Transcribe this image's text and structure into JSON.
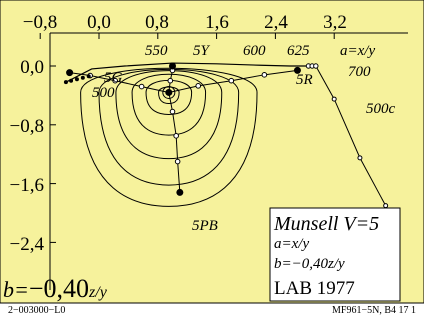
{
  "chart_data": {
    "type": "line",
    "title": "Munsell V=5",
    "subtitle_lines": [
      "a=x/y",
      "b=−0,40z/y"
    ],
    "system": "LAB 1977",
    "bottom_formula": {
      "prefix": "b=",
      "value": "−0,40",
      "suffix": "z/y"
    },
    "xlim": [
      -0.8,
      3.2
    ],
    "ylim": [
      -2.4,
      0.0
    ],
    "x_ticks": [
      "−0,8",
      "0,0",
      "0,8",
      "1,6",
      "2,4",
      "3,2"
    ],
    "y_ticks": [
      "0,0",
      "−0,8",
      "−1,6",
      "−2,4"
    ],
    "wavelength_labels": [
      "550",
      "5Y",
      "600",
      "625",
      "700",
      "500",
      "500c"
    ],
    "hue_labels": [
      "5G",
      "5R",
      "5PB"
    ],
    "axis_formula_label": "a=x/y",
    "white_point": [
      0.95,
      -0.36
    ],
    "spectral_locus": [
      [
        -0.45,
        -0.22
      ],
      [
        -0.1,
        -0.04
      ],
      [
        0.35,
        0.0
      ],
      [
        1.0,
        0.04
      ],
      [
        1.6,
        0.03
      ],
      [
        2.2,
        0.01
      ],
      [
        2.6,
        0.0
      ],
      [
        2.95,
        0.0
      ]
    ],
    "purple_line": [
      [
        2.95,
        0.0
      ],
      [
        3.2,
        -0.45
      ],
      [
        3.55,
        -1.25
      ],
      [
        3.9,
        -1.9
      ],
      [
        4.0,
        -2.1
      ]
    ],
    "hue_lines": [
      {
        "name": "5Y",
        "points": [
          [
            0.95,
            -0.36
          ],
          [
            0.97,
            -0.2
          ],
          [
            1.0,
            -0.06
          ],
          [
            1.0,
            0.0
          ]
        ]
      },
      {
        "name": "5R",
        "points": [
          [
            0.95,
            -0.36
          ],
          [
            1.35,
            -0.27
          ],
          [
            1.8,
            -0.2
          ],
          [
            2.25,
            -0.12
          ],
          [
            2.7,
            -0.06
          ]
        ]
      },
      {
        "name": "5PB",
        "points": [
          [
            0.95,
            -0.36
          ],
          [
            1.0,
            -0.62
          ],
          [
            1.05,
            -0.95
          ],
          [
            1.07,
            -1.3
          ],
          [
            1.1,
            -1.72
          ]
        ]
      },
      {
        "name": "5G",
        "points": [
          [
            0.95,
            -0.36
          ],
          [
            0.58,
            -0.28
          ],
          [
            0.22,
            -0.2
          ],
          [
            -0.12,
            -0.13
          ],
          [
            -0.4,
            -0.09
          ]
        ]
      }
    ],
    "chroma_contours": [
      {
        "rx": 0.14,
        "ry_up": 0.09,
        "ry_down": 0.15
      },
      {
        "rx": 0.31,
        "ry_up": 0.2,
        "ry_down": 0.3
      },
      {
        "rx": 0.5,
        "ry_up": 0.3,
        "ry_down": 0.58
      },
      {
        "rx": 0.72,
        "ry_up": 0.36,
        "ry_down": 0.9
      },
      {
        "rx": 0.95,
        "ry_up": 0.38,
        "ry_down": 1.26
      },
      {
        "rx": 1.2,
        "ry_up": 0.4,
        "ry_down": 1.55
      }
    ],
    "colors": {
      "background": "#f6f29c",
      "line": "#000000"
    },
    "legend_position": "bottom-right"
  },
  "footer": {
    "left": "2−003000−L0",
    "right": "MF961−5N, B4 17 1"
  }
}
